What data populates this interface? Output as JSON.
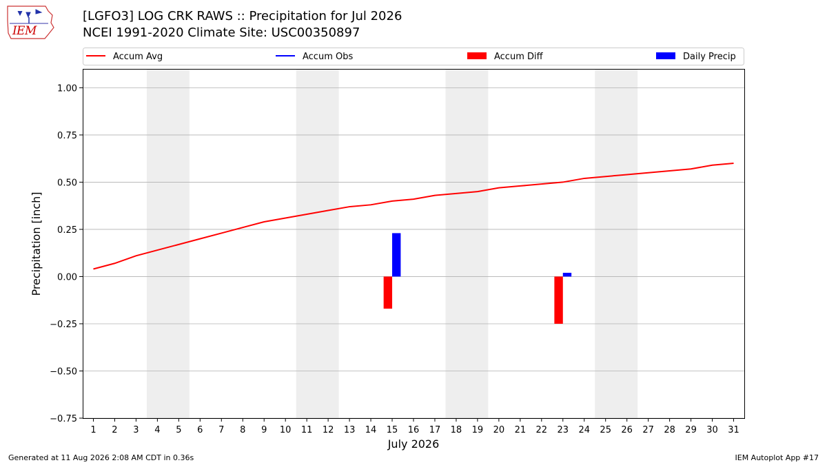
{
  "header": {
    "title_line1": "[LGFO3] LOG CRK RAWS :: Precipitation for Jul 2026",
    "title_line2": "NCEI 1991-2020 Climate Site: USC00350897",
    "logo_text": "IEM"
  },
  "footer": {
    "generated": "Generated at 11 Aug 2026 2:08 AM CDT in 0.36s",
    "app": "IEM Autoplot App #17"
  },
  "colors": {
    "accum_avg": "#ff0000",
    "accum_obs": "#0000ff",
    "accum_diff": "#ff0000",
    "daily_precip": "#0000ff",
    "weekend_band": "#eeeeee",
    "grid": "#b0b0b0"
  },
  "chart_data": {
    "type": "bar",
    "xlabel": "July 2026",
    "ylabel": "Precipitation [inch]",
    "xlim": [
      0.5,
      31.5
    ],
    "ylim": [
      -0.75,
      1.1
    ],
    "yticks": [
      -0.75,
      -0.5,
      -0.25,
      0.0,
      0.25,
      0.5,
      0.75,
      1.0
    ],
    "ytick_labels": [
      "−0.75",
      "−0.50",
      "−0.25",
      "0.00",
      "0.25",
      "0.50",
      "0.75",
      "1.00"
    ],
    "days": [
      1,
      2,
      3,
      4,
      5,
      6,
      7,
      8,
      9,
      10,
      11,
      12,
      13,
      14,
      15,
      16,
      17,
      18,
      19,
      20,
      21,
      22,
      23,
      24,
      25,
      26,
      27,
      28,
      29,
      30,
      31
    ],
    "grid": true,
    "legend_position": "top",
    "legend": [
      {
        "label": "Accum Avg",
        "type": "line",
        "color": "#ff0000"
      },
      {
        "label": "Accum Obs",
        "type": "line",
        "color": "#0000ff"
      },
      {
        "label": "Accum Diff",
        "type": "bar",
        "color": "#ff0000"
      },
      {
        "label": "Daily Precip",
        "type": "bar",
        "color": "#0000ff"
      }
    ],
    "weekend_bands": [
      [
        3.5,
        5.5
      ],
      [
        10.5,
        12.5
      ],
      [
        17.5,
        19.5
      ],
      [
        24.5,
        26.5
      ]
    ],
    "series": [
      {
        "name": "Accum Avg",
        "type": "line",
        "values": [
          0.04,
          0.07,
          0.11,
          0.14,
          0.17,
          0.2,
          0.23,
          0.26,
          0.29,
          0.31,
          0.33,
          0.35,
          0.37,
          0.38,
          0.4,
          0.41,
          0.43,
          0.44,
          0.45,
          0.47,
          0.48,
          0.49,
          0.5,
          0.52,
          0.53,
          0.54,
          0.55,
          0.56,
          0.57,
          0.59,
          0.6
        ]
      },
      {
        "name": "Accum Diff",
        "type": "bar",
        "points": [
          {
            "day": 15,
            "value": -0.17
          },
          {
            "day": 23,
            "value": -0.25
          }
        ]
      },
      {
        "name": "Daily Precip",
        "type": "bar",
        "points": [
          {
            "day": 15,
            "value": 0.23
          },
          {
            "day": 23,
            "value": 0.02
          }
        ]
      }
    ]
  }
}
